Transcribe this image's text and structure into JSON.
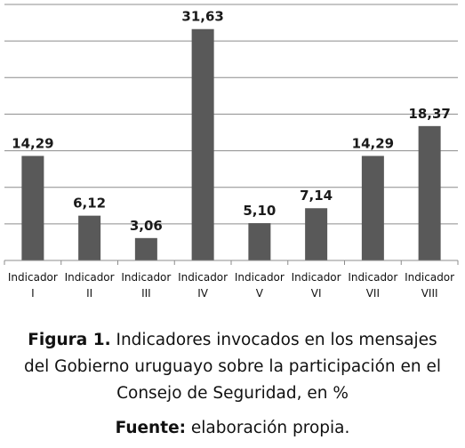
{
  "chart_data": {
    "type": "bar",
    "categories": [
      [
        "Indicador",
        "I"
      ],
      [
        "Indicador",
        "II"
      ],
      [
        "Indicador",
        "III"
      ],
      [
        "Indicador",
        "IV"
      ],
      [
        "Indicador",
        "V"
      ],
      [
        "Indicador",
        "VI"
      ],
      [
        "Indicador",
        "VII"
      ],
      [
        "Indicador",
        "VIII"
      ]
    ],
    "values": [
      14.29,
      6.12,
      3.06,
      31.63,
      5.1,
      7.14,
      14.29,
      18.37
    ],
    "value_labels": [
      "14,29",
      "6,12",
      "3,06",
      "31,63",
      "5,10",
      "7,14",
      "14,29",
      "18,37"
    ],
    "ylim": [
      0,
      35
    ],
    "gridline_step": 5,
    "grid": true,
    "legend": "none",
    "colors": {
      "bar": "#595959",
      "grid": "#8c8c8c",
      "axis": "#8c8c8c"
    }
  },
  "caption": {
    "figure_label": "Figura 1.",
    "figure_line1": " Indicadores invocados en los mensajes",
    "figure_line2": "del Gobierno uruguayo sobre la participación en el",
    "figure_line3": "Consejo de Seguridad, en %",
    "source_label": "Fuente:",
    "source_text": " elaboración propia."
  }
}
